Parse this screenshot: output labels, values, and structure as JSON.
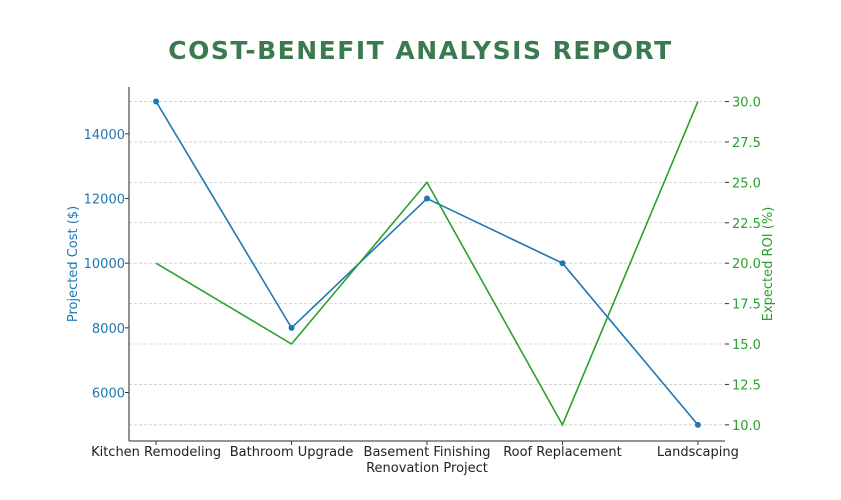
{
  "chart_data": {
    "type": "line",
    "title": "COST-BENEFIT ANALYSIS REPORT",
    "xlabel": "Renovation Project",
    "categories": [
      "Kitchen Remodeling",
      "Bathroom Upgrade",
      "Basement Finishing",
      "Roof Replacement",
      "Landscaping"
    ],
    "series": [
      {
        "axis": "left",
        "color": "#1f77b4",
        "markers": true,
        "values": [
          15000,
          8000,
          12000,
          10000,
          5000
        ]
      },
      {
        "axis": "right",
        "color": "#2ca02c",
        "markers": false,
        "values": [
          20,
          15,
          25,
          10,
          30
        ]
      }
    ],
    "y_left": {
      "label": "Projected Cost ($)",
      "color": "#1f77b4",
      "ylim": [
        4500,
        15450
      ],
      "ticks": [
        6000,
        8000,
        10000,
        12000,
        14000
      ]
    },
    "y_right": {
      "label": "Expected ROI (%)",
      "color": "#2ca02c",
      "ylim": [
        9.0,
        30.9
      ],
      "ticks": [
        "10.0",
        "12.5",
        "15.0",
        "17.5",
        "20.0",
        "22.5",
        "25.0",
        "27.5",
        "30.0"
      ]
    },
    "grid": "horizontal dashed (right axis ticks)",
    "title_color": "#3b7a50"
  }
}
